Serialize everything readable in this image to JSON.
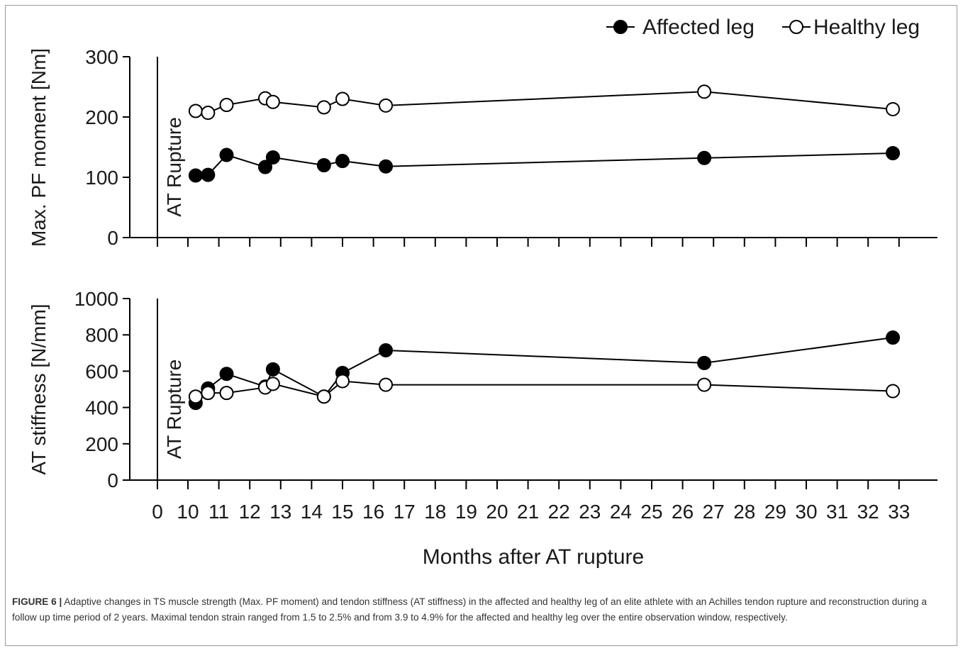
{
  "chart_data": [
    {
      "type": "line",
      "ylabel": "Max. PF moment [Nm]",
      "ylim": [
        0,
        300
      ],
      "yticks": [
        0,
        100,
        200,
        300
      ],
      "xlabel": "Months after AT rupture",
      "x_tick_labels": [
        "0",
        "10",
        "11",
        "12",
        "13",
        "14",
        "15",
        "16",
        "17",
        "18",
        "19",
        "20",
        "21",
        "22",
        "23",
        "24",
        "25",
        "26",
        "27",
        "28",
        "29",
        "30",
        "31",
        "32",
        "33"
      ],
      "annotation": "AT Rupture",
      "legend_position": "top-right",
      "series": [
        {
          "name": "Affected leg",
          "marker": "filled-circle",
          "color": "#000000",
          "x": [
            10.25,
            10.65,
            11.25,
            12.5,
            12.75,
            14.4,
            15.0,
            16.4,
            26.7,
            32.8
          ],
          "values": [
            103,
            104,
            137,
            117,
            133,
            120,
            127,
            118,
            132,
            140
          ]
        },
        {
          "name": "Healthy leg",
          "marker": "open-circle",
          "color": "#000000",
          "x": [
            10.25,
            10.65,
            11.25,
            12.5,
            12.75,
            14.4,
            15.0,
            16.4,
            26.7,
            32.8
          ],
          "values": [
            210,
            207,
            220,
            231,
            225,
            216,
            230,
            219,
            242,
            213
          ]
        }
      ]
    },
    {
      "type": "line",
      "ylabel": "AT stiffness [N/mm]",
      "ylim": [
        0,
        1000
      ],
      "yticks": [
        0,
        200,
        400,
        600,
        800,
        1000
      ],
      "xlabel": "Months after AT rupture",
      "x_tick_labels": [
        "0",
        "10",
        "11",
        "12",
        "13",
        "14",
        "15",
        "16",
        "17",
        "18",
        "19",
        "20",
        "21",
        "22",
        "23",
        "24",
        "25",
        "26",
        "27",
        "28",
        "29",
        "30",
        "31",
        "32",
        "33"
      ],
      "annotation": "AT Rupture",
      "series": [
        {
          "name": "Affected leg",
          "marker": "filled-circle",
          "color": "#000000",
          "x": [
            10.25,
            10.65,
            11.25,
            12.5,
            12.75,
            14.4,
            15.0,
            16.4,
            26.7,
            32.8
          ],
          "values": [
            425,
            505,
            585,
            515,
            610,
            460,
            590,
            715,
            645,
            785
          ]
        },
        {
          "name": "Healthy leg",
          "marker": "open-circle",
          "color": "#000000",
          "x": [
            10.25,
            10.65,
            11.25,
            12.5,
            12.75,
            14.4,
            15.0,
            16.4,
            26.7,
            32.8
          ],
          "values": [
            460,
            480,
            480,
            510,
            530,
            460,
            545,
            525,
            525,
            490
          ]
        }
      ]
    }
  ],
  "legend": {
    "affected_label": "Affected leg",
    "healthy_label": "Healthy leg"
  },
  "caption": {
    "label": "FIGURE 6 |",
    "text": " Adaptive changes in TS muscle strength (Max. PF moment) and tendon stiffness (AT stiffness) in the affected and healthy leg of an elite athlete with an Achilles tendon rupture and reconstruction during a follow up time period of 2 years. Maximal tendon strain ranged from 1.5 to 2.5% and from 3.9 to 4.9% for the affected and healthy leg over the entire observation window, respectively."
  }
}
